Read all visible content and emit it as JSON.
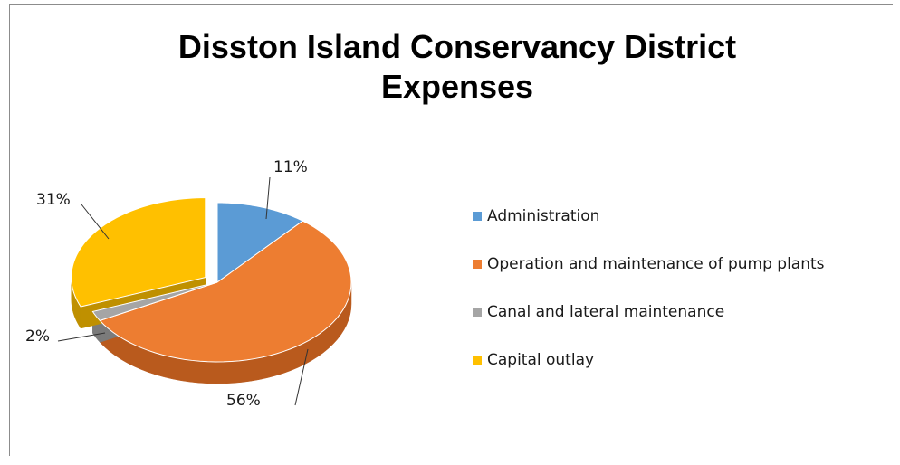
{
  "chart_data": {
    "type": "pie",
    "title": "Disston Island Conservancy District Expenses",
    "title_lines": [
      "Disston Island Conservancy District",
      "Expenses"
    ],
    "legend_position": "right",
    "three_d": true,
    "exploded_slice": "Capital outlay",
    "slices": [
      {
        "label": "Administration",
        "value": 11,
        "value_label": "11%",
        "color": "#5b9bd5",
        "dark": "#3b75ad"
      },
      {
        "label": "Operation and maintenance of pump plants",
        "value": 56,
        "value_label": "56%",
        "color": "#ed7d31",
        "dark": "#b95a1d"
      },
      {
        "label": "Canal and lateral maintenance",
        "value": 2,
        "value_label": "2%",
        "color": "#a5a5a5",
        "dark": "#7b7b7b"
      },
      {
        "label": "Capital outlay",
        "value": 31,
        "value_label": "31%",
        "color": "#ffc000",
        "dark": "#bf9000"
      }
    ]
  }
}
